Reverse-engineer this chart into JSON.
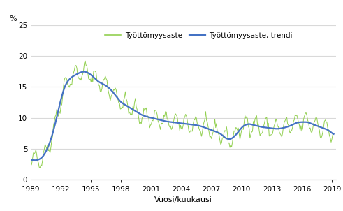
{
  "title": "",
  "ylabel": "%",
  "xlabel": "Vuosi/kuukausi",
  "legend_line1": "Työttömyysaste",
  "legend_line2": "Työttömyysaste, trendi",
  "color_raw": "#92d050",
  "color_trend": "#4472c4",
  "ylim": [
    0,
    25
  ],
  "yticks": [
    0,
    5,
    10,
    15,
    20,
    25
  ],
  "xtick_years": [
    1989,
    1992,
    1995,
    1998,
    2001,
    2004,
    2007,
    2010,
    2013,
    2016,
    2019
  ],
  "grid_color": "#d9d9d9",
  "background_color": "#ffffff",
  "xlim_start": 1989.0,
  "xlim_end": 2019.42
}
